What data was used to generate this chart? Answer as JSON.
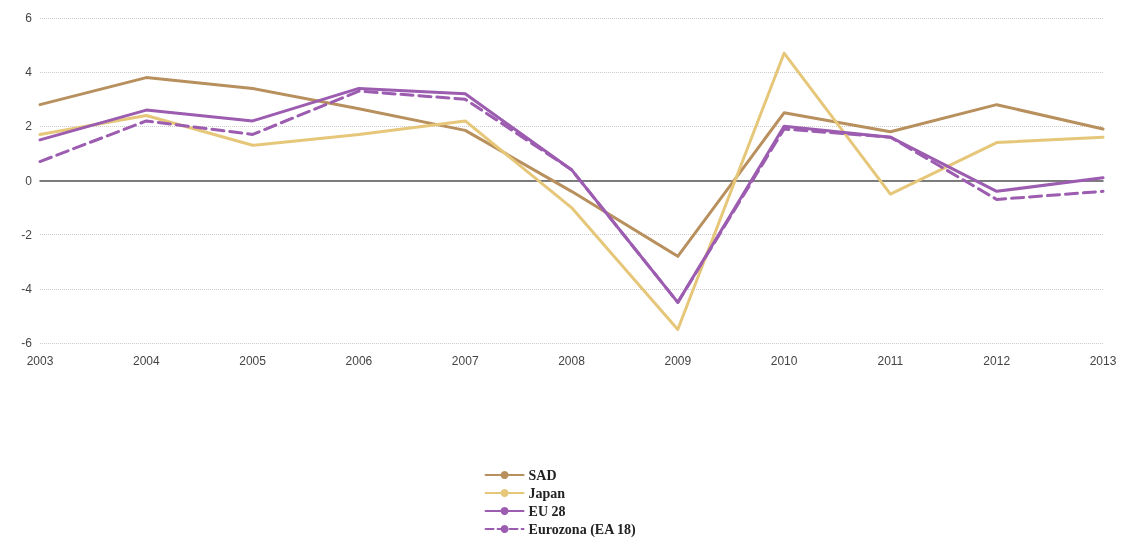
{
  "chart_data": {
    "type": "line",
    "categories": [
      "2003",
      "2004",
      "2005",
      "2006",
      "2007",
      "2008",
      "2009",
      "2010",
      "2011",
      "2012",
      "2013"
    ],
    "series": [
      {
        "name": "SAD",
        "color": "#b8905e",
        "line_style": "solid",
        "values": [
          2.8,
          3.8,
          3.4,
          2.65,
          1.85,
          -0.4,
          -2.8,
          2.5,
          1.8,
          2.8,
          1.9
        ]
      },
      {
        "name": "Japan",
        "color": "#e6c77a",
        "line_style": "solid",
        "values": [
          1.7,
          2.4,
          1.3,
          1.7,
          2.2,
          -1.0,
          -5.5,
          4.7,
          -0.5,
          1.4,
          1.6
        ]
      },
      {
        "name": "EU 28",
        "color": "#9c5cb0",
        "line_style": "solid",
        "values": [
          1.5,
          2.6,
          2.2,
          3.4,
          3.2,
          0.4,
          -4.5,
          2.0,
          1.6,
          -0.4,
          0.1
        ]
      },
      {
        "name": "Eurozona (EA 18)",
        "color": "#9c5cb0",
        "line_style": "dashed",
        "values": [
          0.7,
          2.2,
          1.7,
          3.3,
          3.0,
          0.4,
          -4.5,
          1.9,
          1.6,
          -0.7,
          -0.4
        ]
      }
    ],
    "ylim": [
      -6,
      6
    ],
    "yticks": [
      -6,
      -4,
      -2,
      0,
      2,
      4,
      6
    ],
    "grid": "y",
    "legend": "bottom",
    "marker": "none"
  }
}
